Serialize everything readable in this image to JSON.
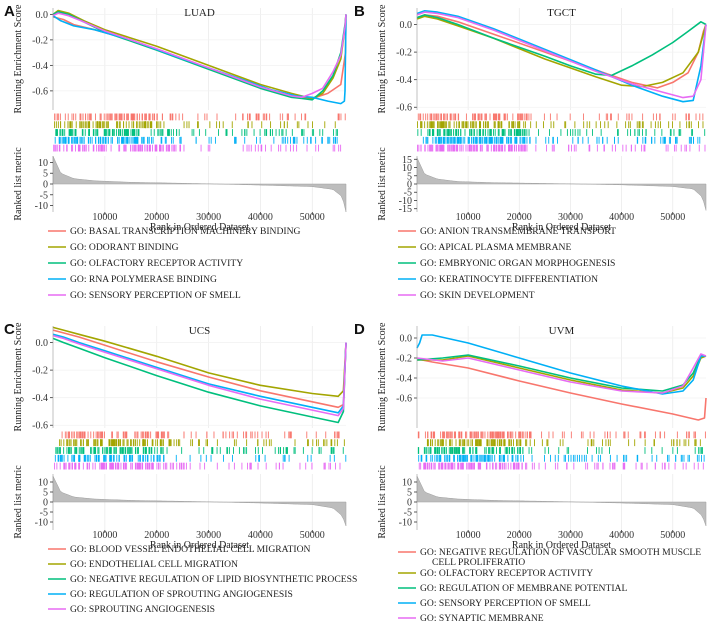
{
  "chart_data": [
    {
      "type": "line",
      "panel": "A",
      "title": "LUAD",
      "xlabel": "Rank in Ordered Dataset",
      "ylabel_top": "Running Enrichment Score",
      "ylabel_bottom": "Ranked list metric",
      "xlim": [
        0,
        56500
      ],
      "ylim": [
        -0.75,
        0.05
      ],
      "ylim_bottom": [
        -13,
        13
      ],
      "x_ticks": [
        10000,
        20000,
        30000,
        40000,
        50000
      ],
      "y_ticks": [
        0.0,
        -0.2,
        -0.4,
        -0.6
      ],
      "y_ticks_bottom": [
        10,
        5,
        0,
        -5,
        -10
      ],
      "rank_metric_profile": [
        [
          0,
          13
        ],
        [
          1500,
          5
        ],
        [
          4000,
          2.5
        ],
        [
          8000,
          1.5
        ],
        [
          15000,
          0.8
        ],
        [
          28000,
          0.2
        ],
        [
          40000,
          -0.5
        ],
        [
          50000,
          -1.2
        ],
        [
          54000,
          -2.5
        ],
        [
          55800,
          -6
        ],
        [
          56500,
          -13
        ]
      ],
      "series": [
        {
          "name": "GO: BASAL TRANSCRIPTION MACHINERY BINDING",
          "color": "#F8766D",
          "x": [
            0,
            2000,
            4000,
            8000,
            15000,
            25000,
            35000,
            42000,
            48000,
            50000,
            53000,
            55500,
            56400,
            56500
          ],
          "y": [
            -0.02,
            -0.04,
            -0.08,
            -0.12,
            -0.2,
            -0.35,
            -0.5,
            -0.6,
            -0.65,
            -0.66,
            -0.62,
            -0.55,
            -0.3,
            0.0
          ]
        },
        {
          "name": "GO: ODORANT BINDING",
          "color": "#A3A500",
          "x": [
            0,
            1000,
            3000,
            6000,
            10000,
            20000,
            30000,
            40000,
            46000,
            48000,
            50000,
            52000,
            54000,
            55500,
            56300,
            56500
          ],
          "y": [
            0.0,
            0.03,
            0.01,
            -0.05,
            -0.12,
            -0.25,
            -0.4,
            -0.55,
            -0.62,
            -0.64,
            -0.66,
            -0.62,
            -0.5,
            -0.35,
            -0.1,
            0.0
          ]
        },
        {
          "name": "GO: OLFACTORY RECEPTOR ACTIVITY",
          "color": "#00BF7D",
          "x": [
            0,
            1000,
            3000,
            6000,
            10000,
            20000,
            30000,
            40000,
            46000,
            48000,
            50000,
            52000,
            54000,
            55500,
            56300,
            56500
          ],
          "y": [
            0.0,
            0.02,
            0.0,
            -0.06,
            -0.14,
            -0.28,
            -0.43,
            -0.58,
            -0.65,
            -0.66,
            -0.67,
            -0.6,
            -0.48,
            -0.3,
            -0.08,
            0.0
          ]
        },
        {
          "name": "GO: RNA POLYMERASE BINDING",
          "color": "#00B0F6",
          "x": [
            0,
            1500,
            4000,
            8000,
            15000,
            25000,
            35000,
            42000,
            47000,
            50000,
            53000,
            55500,
            56200,
            56300,
            56500
          ],
          "y": [
            -0.01,
            -0.05,
            -0.09,
            -0.12,
            -0.2,
            -0.35,
            -0.49,
            -0.59,
            -0.64,
            -0.65,
            -0.68,
            -0.7,
            -0.68,
            -0.6,
            0.0
          ]
        },
        {
          "name": "GO: SENSORY PERCEPTION OF SMELL",
          "color": "#E76BF3",
          "x": [
            0,
            1000,
            3000,
            6000,
            10000,
            20000,
            30000,
            40000,
            46000,
            48000,
            50000,
            52000,
            54000,
            55500,
            56300,
            56500
          ],
          "y": [
            -0.01,
            0.01,
            -0.01,
            -0.06,
            -0.13,
            -0.27,
            -0.42,
            -0.57,
            -0.64,
            -0.65,
            -0.62,
            -0.58,
            -0.45,
            -0.32,
            -0.1,
            0.0
          ]
        }
      ]
    },
    {
      "type": "line",
      "panel": "B",
      "title": "TGCT",
      "xlabel": "Rank in Ordered Dataset",
      "ylabel_top": "Running Enrichment Score",
      "ylabel_bottom": "Ranked list metric",
      "xlim": [
        0,
        56500
      ],
      "ylim": [
        -0.62,
        0.12
      ],
      "ylim_bottom": [
        -17,
        17
      ],
      "x_ticks": [
        10000,
        20000,
        30000,
        40000,
        50000
      ],
      "y_ticks": [
        0.0,
        -0.2,
        -0.4,
        -0.6
      ],
      "y_ticks_bottom": [
        15,
        10,
        5,
        0,
        -5,
        -10,
        -15
      ],
      "rank_metric_profile": [
        [
          0,
          16
        ],
        [
          1500,
          6
        ],
        [
          4000,
          3
        ],
        [
          8000,
          1.5
        ],
        [
          15000,
          0.8
        ],
        [
          28000,
          0.2
        ],
        [
          40000,
          -0.5
        ],
        [
          50000,
          -1.5
        ],
        [
          54000,
          -3
        ],
        [
          55800,
          -8
        ],
        [
          56500,
          -16
        ]
      ],
      "series": [
        {
          "name": "GO: ANION TRANSMEMBRANE TRANSPORT",
          "color": "#F8766D",
          "x": [
            0,
            1500,
            4000,
            8000,
            15000,
            25000,
            35000,
            42000,
            47000,
            50000,
            53000,
            55000,
            56000,
            56500
          ],
          "y": [
            0.05,
            0.07,
            0.06,
            0.02,
            -0.07,
            -0.2,
            -0.33,
            -0.42,
            -0.46,
            -0.42,
            -0.35,
            -0.2,
            -0.05,
            0.0
          ]
        },
        {
          "name": "GO: APICAL PLASMA MEMBRANE",
          "color": "#A3A500",
          "x": [
            0,
            1500,
            4000,
            8000,
            15000,
            25000,
            35000,
            40000,
            44000,
            48000,
            52000,
            55000,
            56500
          ],
          "y": [
            0.04,
            0.06,
            0.04,
            -0.01,
            -0.1,
            -0.25,
            -0.38,
            -0.44,
            -0.45,
            -0.42,
            -0.35,
            -0.2,
            0.0
          ]
        },
        {
          "name": "GO: EMBRYONIC ORGAN MORPHOGENESIS",
          "color": "#00BF7D",
          "x": [
            0,
            1500,
            4000,
            8000,
            15000,
            25000,
            30000,
            35000,
            38000,
            42000,
            46000,
            50000,
            53000,
            55500,
            56500
          ],
          "y": [
            0.05,
            0.07,
            0.05,
            0.0,
            -0.1,
            -0.23,
            -0.3,
            -0.36,
            -0.37,
            -0.3,
            -0.22,
            -0.13,
            -0.05,
            0.02,
            0.0
          ]
        },
        {
          "name": "GO: KERATINOCYTE DIFFERENTIATION",
          "color": "#00B0F6",
          "x": [
            0,
            1500,
            4000,
            8000,
            15000,
            25000,
            35000,
            42000,
            48000,
            52000,
            54000,
            55500,
            56500
          ],
          "y": [
            0.08,
            0.1,
            0.09,
            0.06,
            -0.03,
            -0.18,
            -0.33,
            -0.44,
            -0.52,
            -0.56,
            -0.55,
            -0.3,
            0.0
          ]
        },
        {
          "name": "GO: SKIN DEVELOPMENT",
          "color": "#E76BF3",
          "x": [
            0,
            1500,
            4000,
            8000,
            15000,
            25000,
            35000,
            42000,
            48000,
            52000,
            54000,
            55500,
            56500
          ],
          "y": [
            0.07,
            0.09,
            0.08,
            0.05,
            -0.04,
            -0.19,
            -0.34,
            -0.43,
            -0.49,
            -0.53,
            -0.52,
            -0.4,
            0.0
          ]
        }
      ]
    },
    {
      "type": "line",
      "panel": "C",
      "title": "UCS",
      "xlabel": "Rank in Ordered Dataset",
      "ylabel_top": "Running Enrichment Score",
      "ylabel_bottom": "Ranked list metric",
      "xlim": [
        0,
        56500
      ],
      "ylim": [
        -0.62,
        0.12
      ],
      "ylim_bottom": [
        -14,
        14
      ],
      "x_ticks": [
        10000,
        20000,
        30000,
        40000,
        50000
      ],
      "y_ticks": [
        0.0,
        -0.2,
        -0.4,
        -0.6
      ],
      "y_ticks_bottom": [
        10,
        5,
        0,
        -5,
        -10
      ],
      "rank_metric_profile": [
        [
          0,
          13
        ],
        [
          1500,
          5
        ],
        [
          4000,
          2.5
        ],
        [
          8000,
          1.5
        ],
        [
          15000,
          0.8
        ],
        [
          28000,
          0.2
        ],
        [
          40000,
          -0.5
        ],
        [
          50000,
          -1.3
        ],
        [
          54000,
          -3
        ],
        [
          55800,
          -7
        ],
        [
          56500,
          -12
        ]
      ],
      "series": [
        {
          "name": "GO: BLOOD VESSEL ENDOTHELIAL CELL MIGRATION",
          "color": "#F8766D",
          "x": [
            0,
            2000,
            5000,
            10000,
            20000,
            30000,
            40000,
            50000,
            55000,
            56000,
            56500
          ],
          "y": [
            0.09,
            0.07,
            0.04,
            -0.02,
            -0.14,
            -0.25,
            -0.35,
            -0.43,
            -0.47,
            -0.45,
            0.0
          ]
        },
        {
          "name": "GO: ENDOTHELIAL CELL MIGRATION",
          "color": "#A3A500",
          "x": [
            0,
            2000,
            5000,
            10000,
            20000,
            30000,
            40000,
            50000,
            55000,
            56000,
            56500
          ],
          "y": [
            0.11,
            0.09,
            0.06,
            0.01,
            -0.1,
            -0.22,
            -0.31,
            -0.37,
            -0.39,
            -0.35,
            0.0
          ]
        },
        {
          "name": "GO: NEGATIVE REGULATION OF LIPID BIOSYNTHETIC PROCESS",
          "color": "#00BF7D",
          "x": [
            0,
            2000,
            5000,
            10000,
            20000,
            30000,
            40000,
            50000,
            55000,
            56000,
            56500
          ],
          "y": [
            0.03,
            0.0,
            -0.04,
            -0.11,
            -0.24,
            -0.36,
            -0.46,
            -0.54,
            -0.58,
            -0.5,
            0.0
          ]
        },
        {
          "name": "GO: REGULATION OF SPROUTING ANGIOGENESIS",
          "color": "#00B0F6",
          "x": [
            0,
            2000,
            5000,
            10000,
            20000,
            30000,
            40000,
            50000,
            55000,
            56000,
            56500
          ],
          "y": [
            0.06,
            0.04,
            0.0,
            -0.06,
            -0.18,
            -0.3,
            -0.39,
            -0.47,
            -0.51,
            -0.46,
            0.0
          ]
        },
        {
          "name": "GO: SPROUTING ANGIOGENESIS",
          "color": "#E76BF3",
          "x": [
            0,
            2000,
            5000,
            10000,
            20000,
            30000,
            40000,
            50000,
            55000,
            56000,
            56500
          ],
          "y": [
            0.05,
            0.03,
            -0.01,
            -0.07,
            -0.19,
            -0.31,
            -0.41,
            -0.49,
            -0.53,
            -0.48,
            0.0
          ]
        }
      ]
    },
    {
      "type": "line",
      "panel": "D",
      "title": "UVM",
      "xlabel": "Rank in Ordered Dataset",
      "ylabel_top": "Running Enrichment Score",
      "ylabel_bottom": "Ranked list metric",
      "xlim": [
        0,
        56500
      ],
      "ylim": [
        -0.9,
        0.12
      ],
      "ylim_bottom": [
        -14,
        14
      ],
      "x_ticks": [
        10000,
        20000,
        30000,
        40000,
        50000
      ],
      "y_ticks": [
        0.0,
        -0.2,
        -0.4,
        -0.6
      ],
      "y_ticks_bottom": [
        10,
        5,
        0,
        -5,
        -10
      ],
      "rank_metric_profile": [
        [
          0,
          13
        ],
        [
          1500,
          5
        ],
        [
          4000,
          2.5
        ],
        [
          8000,
          1.5
        ],
        [
          15000,
          0.8
        ],
        [
          28000,
          0.2
        ],
        [
          40000,
          -0.5
        ],
        [
          50000,
          -1.3
        ],
        [
          54000,
          -3
        ],
        [
          55800,
          -7
        ],
        [
          56500,
          -12
        ]
      ],
      "series": [
        {
          "name": "GO: NEGATIVE REGULATION OF VASCULAR SMOOTH MUSCLE CELL PROLIFERATIO",
          "color": "#F8766D",
          "x": [
            0,
            1000,
            3000,
            10000,
            20000,
            30000,
            40000,
            50000,
            55000,
            56200,
            56500
          ],
          "y": [
            -0.2,
            -0.22,
            -0.24,
            -0.3,
            -0.43,
            -0.55,
            -0.66,
            -0.76,
            -0.82,
            -0.8,
            -0.6
          ]
        },
        {
          "name": "GO: OLFACTORY RECEPTOR ACTIVITY",
          "color": "#A3A500",
          "x": [
            0,
            5000,
            10000,
            20000,
            30000,
            40000,
            48000,
            52000,
            54000,
            55500,
            56500
          ],
          "y": [
            -0.22,
            -0.22,
            -0.18,
            -0.3,
            -0.42,
            -0.52,
            -0.55,
            -0.5,
            -0.38,
            -0.2,
            -0.18
          ]
        },
        {
          "name": "GO: REGULATION OF MEMBRANE POTENTIAL",
          "color": "#00BF7D",
          "x": [
            0,
            5000,
            10000,
            20000,
            30000,
            40000,
            48000,
            52000,
            54000,
            55500,
            56500
          ],
          "y": [
            -0.22,
            -0.2,
            -0.17,
            -0.28,
            -0.4,
            -0.5,
            -0.53,
            -0.47,
            -0.35,
            -0.18,
            -0.18
          ]
        },
        {
          "name": "GO: SENSORY PERCEPTION OF SMELL",
          "color": "#00B0F6",
          "x": [
            0,
            500,
            1000,
            3000,
            10000,
            20000,
            30000,
            40000,
            48000,
            52000,
            54000,
            55500,
            56500
          ],
          "y": [
            -0.1,
            -0.05,
            0.03,
            0.03,
            -0.05,
            -0.2,
            -0.35,
            -0.48,
            -0.56,
            -0.53,
            -0.42,
            -0.18,
            -0.18
          ]
        },
        {
          "name": "GO: SYNAPTIC MEMBRANE",
          "color": "#E76BF3",
          "x": [
            0,
            5000,
            10000,
            20000,
            30000,
            40000,
            48000,
            52000,
            54000,
            55500,
            56500
          ],
          "y": [
            -0.2,
            -0.23,
            -0.2,
            -0.32,
            -0.44,
            -0.53,
            -0.55,
            -0.48,
            -0.3,
            -0.16,
            -0.18
          ]
        }
      ]
    }
  ]
}
